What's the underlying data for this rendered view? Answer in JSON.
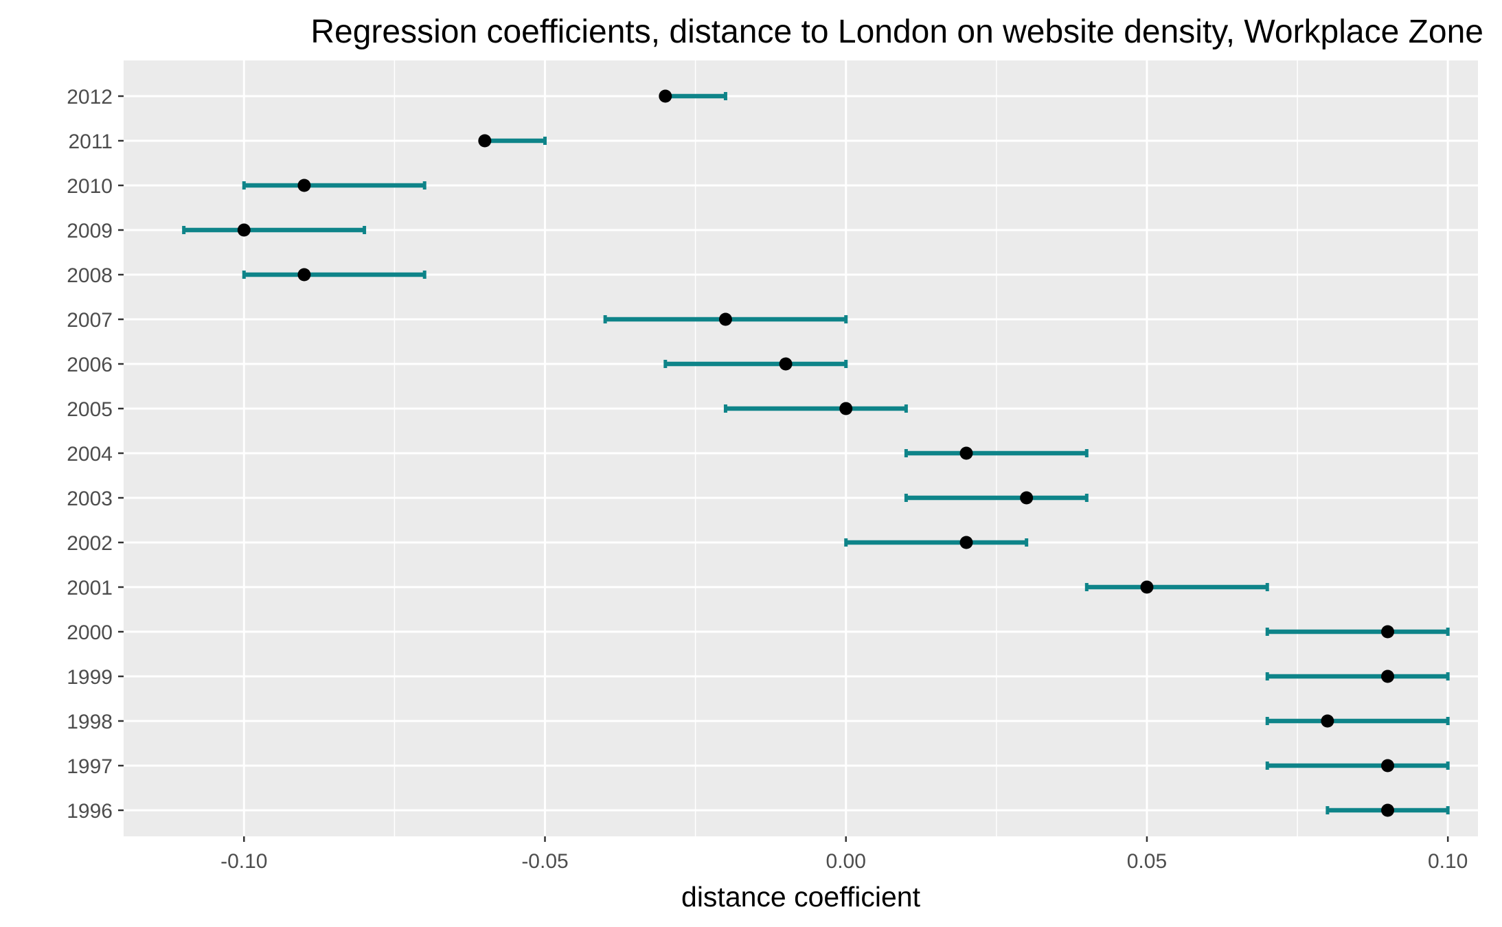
{
  "chart_data": {
    "type": "errorbar",
    "title": "Regression coefficients, distance to London on website density, Workplace Zone",
    "xlabel": "distance coefficient",
    "ylabel": "",
    "xlim": [
      -0.12,
      0.105
    ],
    "x_ticks": [
      -0.1,
      -0.05,
      0.0,
      0.05,
      0.1
    ],
    "x_tick_labels": [
      "-0.10",
      "-0.05",
      "0.00",
      "0.05",
      "0.10"
    ],
    "grid": true,
    "colors": {
      "panel": "#ebebeb",
      "grid": "#ffffff",
      "errorbar": "#0e8489",
      "point": "#000000"
    },
    "categories": [
      "2012",
      "2011",
      "2010",
      "2009",
      "2008",
      "2007",
      "2006",
      "2005",
      "2004",
      "2003",
      "2002",
      "2001",
      "2000",
      "1999",
      "1998",
      "1997",
      "1996"
    ],
    "estimate": [
      -0.03,
      -0.06,
      -0.09,
      -0.1,
      -0.09,
      -0.02,
      -0.01,
      0.0,
      0.02,
      0.03,
      0.02,
      0.05,
      0.09,
      0.09,
      0.08,
      0.09,
      0.09
    ],
    "lower": [
      -0.03,
      -0.06,
      -0.1,
      -0.11,
      -0.1,
      -0.04,
      -0.03,
      -0.02,
      0.01,
      0.01,
      0.0,
      0.04,
      0.07,
      0.07,
      0.07,
      0.07,
      0.08
    ],
    "upper": [
      -0.02,
      -0.05,
      -0.07,
      -0.08,
      -0.07,
      0.0,
      0.0,
      0.01,
      0.04,
      0.04,
      0.03,
      0.07,
      0.1,
      0.1,
      0.1,
      0.1,
      0.1
    ]
  }
}
